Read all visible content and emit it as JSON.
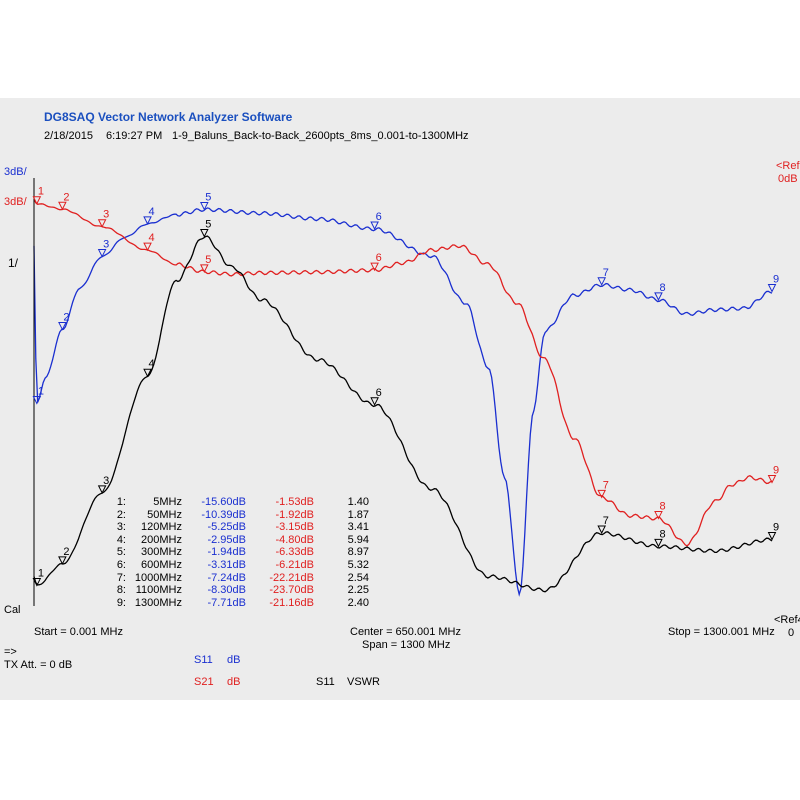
{
  "header": {
    "app_title": "DG8SAQ Vector Network Analyzer Software",
    "date": "2/18/2015",
    "time": "6:19:27 PM",
    "file": "1-9_Baluns_Back-to-Back_2600pts_8ms_0.001-to-1300MHz"
  },
  "axis_labels": {
    "left_top_blue": "3dB/",
    "left_top_red": "3dB/",
    "left_vswr": "1/",
    "left_cal": "Cal",
    "right_ref_red": "<Ref",
    "right_ref_red_val": "0dB",
    "right_ref_black": "<Ref4",
    "right_ref_black_val": "0"
  },
  "footer": {
    "start": "Start = 0.001 MHz",
    "center": "Center = 650.001 MHz",
    "span": "Span = 1300 MHz",
    "stop": "Stop = 1300.001 MHz",
    "arrow": "=>",
    "tx_att": "TX Att. = 0 dB"
  },
  "legend": {
    "s11_db_name": "S11",
    "s11_db_unit": "dB",
    "s21_db_name": "S21",
    "s21_db_unit": "dB",
    "s11_vswr_name": "S11",
    "s11_vswr_unit": "VSWR"
  },
  "marker_table": [
    {
      "id": "1:",
      "freq": "5MHz",
      "s11": "-15.60dB",
      "s21": "-1.53dB",
      "vswr": "1.40"
    },
    {
      "id": "2:",
      "freq": "50MHz",
      "s11": "-10.39dB",
      "s21": "-1.92dB",
      "vswr": "1.87"
    },
    {
      "id": "3:",
      "freq": "120MHz",
      "s11": "-5.25dB",
      "s21": "-3.15dB",
      "vswr": "3.41"
    },
    {
      "id": "4:",
      "freq": "200MHz",
      "s11": "-2.95dB",
      "s21": "-4.80dB",
      "vswr": "5.94"
    },
    {
      "id": "5:",
      "freq": "300MHz",
      "s11": "-1.94dB",
      "s21": "-6.33dB",
      "vswr": "8.97"
    },
    {
      "id": "6:",
      "freq": "600MHz",
      "s11": "-3.31dB",
      "s21": "-6.21dB",
      "vswr": "5.32"
    },
    {
      "id": "7:",
      "freq": "1000MHz",
      "s11": "-7.24dB",
      "s21": "-22.21dB",
      "vswr": "2.54"
    },
    {
      "id": "8:",
      "freq": "1100MHz",
      "s11": "-8.30dB",
      "s21": "-23.70dB",
      "vswr": "2.25"
    },
    {
      "id": "9:",
      "freq": "1300MHz",
      "s11": "-7.71dB",
      "s21": "-21.16dB",
      "vswr": "2.40"
    }
  ],
  "chart_data": {
    "type": "line",
    "xlim": [
      0.001,
      1300.001
    ],
    "grid": false,
    "series": [
      {
        "name": "S11 dB",
        "color": "#1a2fd0",
        "x": [
          0.001,
          5,
          20,
          50,
          80,
          120,
          160,
          200,
          250,
          300,
          400,
          500,
          600,
          700,
          760,
          800,
          830,
          855,
          880,
          900,
          950,
          1000,
          1050,
          1100,
          1150,
          1200,
          1250,
          1300
        ],
        "y": [
          -4.5,
          -15.6,
          -13.8,
          -10.39,
          -7.5,
          -5.25,
          -3.9,
          -2.95,
          -2.3,
          -1.94,
          -2.2,
          -2.6,
          -3.31,
          -5.2,
          -8.5,
          -13,
          -21,
          -29,
          -16,
          -10.5,
          -8,
          -7.24,
          -7.6,
          -8.3,
          -9.3,
          -9.0,
          -8.9,
          -7.71
        ]
      },
      {
        "name": "S21 dB",
        "color": "#e02020",
        "x": [
          0.001,
          5,
          50,
          120,
          200,
          250,
          300,
          350,
          400,
          500,
          600,
          650,
          700,
          750,
          800,
          850,
          900,
          950,
          1000,
          1050,
          1100,
          1150,
          1200,
          1230,
          1260,
          1300
        ],
        "y": [
          -1.2,
          -1.53,
          -1.92,
          -3.15,
          -4.8,
          -5.8,
          -6.33,
          -6.5,
          -6.4,
          -6.35,
          -6.21,
          -5.7,
          -4.8,
          -4.5,
          -5.8,
          -8.5,
          -12.5,
          -18,
          -22.21,
          -23.5,
          -23.7,
          -25.5,
          -22.5,
          -21.3,
          -20.8,
          -21.16
        ]
      },
      {
        "name": "S11 VSWR",
        "color": "#000000",
        "x": [
          0.001,
          5,
          50,
          120,
          200,
          250,
          300,
          350,
          400,
          500,
          600,
          700,
          800,
          900,
          1000,
          1100,
          1200,
          1300
        ],
        "y": [
          1.6,
          1.4,
          1.87,
          3.41,
          5.94,
          8.0,
          8.97,
          8.3,
          7.6,
          6.3,
          5.32,
          3.5,
          1.6,
          1.3,
          2.54,
          2.25,
          2.15,
          2.4
        ]
      }
    ],
    "markers": [
      "1",
      "2",
      "3",
      "4",
      "5",
      "6",
      "7",
      "8",
      "9"
    ]
  }
}
